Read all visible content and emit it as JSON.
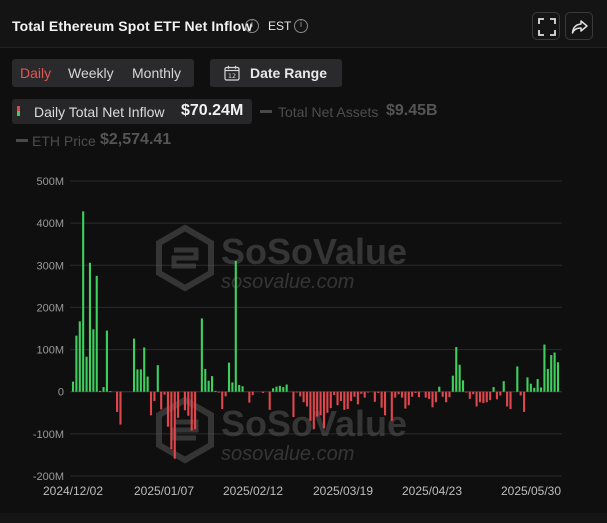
{
  "header": {
    "title": "Total Ethereum Spot ETF Net Inflow",
    "timezone": "EST",
    "info_icon": "info-icon",
    "fullscreen_icon": "expand-icon",
    "share_icon": "share-icon"
  },
  "controls": {
    "periods": [
      "Daily",
      "Weekly",
      "Monthly"
    ],
    "active_period": "Daily",
    "date_range_label": "Date Range",
    "calendar_icon": "calendar-12-icon"
  },
  "legend": {
    "inflow": {
      "label": "Daily Total Net Inflow",
      "value": "$70.24M"
    },
    "assets": {
      "label": "Total Net Assets",
      "value": "$9.45B"
    },
    "price": {
      "label": "ETH Price",
      "value": "$2,574.41"
    }
  },
  "watermark": {
    "brand": "SoSoValue",
    "url": "sosovalue.com"
  },
  "colors": {
    "positive": "#3ecf5c",
    "negative": "#e0474c",
    "accent": "#e4574e"
  },
  "chart_data": {
    "type": "bar",
    "unit": "M USD",
    "ylim": [
      -200,
      500
    ],
    "y_ticks": [
      "500M",
      "400M",
      "300M",
      "200M",
      "100M",
      "0",
      "-100M",
      "-200M"
    ],
    "x_ticks": [
      "2024/12/02",
      "2025/01/07",
      "2025/02/12",
      "2025/03/19",
      "2025/04/23",
      "2025/05/30"
    ],
    "grid": true,
    "values": [
      24,
      133,
      167,
      428,
      83,
      306,
      148,
      275,
      2,
      11,
      145,
      1,
      0,
      -48,
      -78,
      0,
      0,
      0,
      126,
      53,
      53,
      105,
      36,
      -56,
      -22,
      63,
      -42,
      -7,
      -83,
      -136,
      -159,
      -62,
      0,
      -44,
      -57,
      -92,
      -89,
      0,
      174,
      54,
      26,
      37,
      2,
      -2,
      -41,
      -11,
      69,
      22,
      310,
      16,
      13,
      0,
      -26,
      -8,
      0,
      0,
      -3,
      0,
      -43,
      8,
      12,
      14,
      11,
      17,
      0,
      -60,
      -1,
      -11,
      -25,
      -35,
      -69,
      -89,
      -59,
      -56,
      -87,
      -50,
      -39,
      -8,
      -32,
      -22,
      -43,
      -41,
      -22,
      -12,
      -30,
      -5,
      -14,
      -2,
      0,
      -24,
      -3,
      -38,
      -56,
      0,
      -69,
      -14,
      -6,
      -14,
      -40,
      -32,
      -12,
      -3,
      -13,
      0,
      -14,
      -17,
      -37,
      -25,
      12,
      -12,
      -25,
      -13,
      38,
      106,
      64,
      27,
      -2,
      -17,
      -6,
      -35,
      -25,
      -27,
      -25,
      -20,
      11,
      -18,
      -9,
      25,
      -35,
      -41,
      0,
      60,
      -9,
      -48,
      34,
      19,
      9,
      30,
      10,
      112,
      54,
      87,
      93,
      70
    ]
  }
}
